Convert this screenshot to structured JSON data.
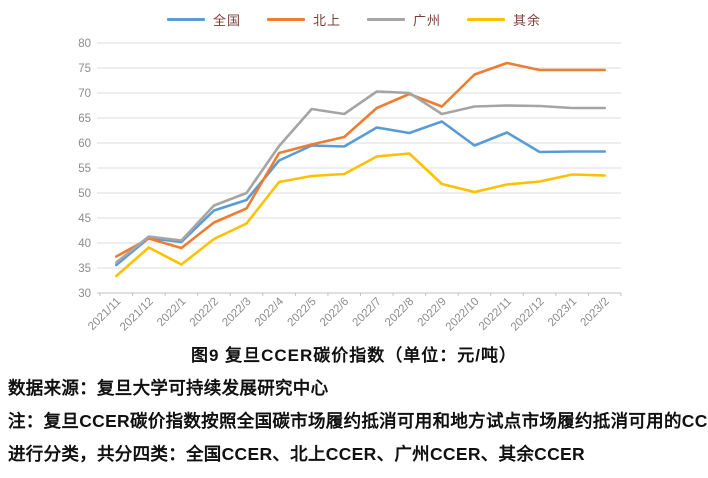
{
  "chart_data": {
    "type": "line",
    "title": "图9  复旦CCER碳价指数（单位：元/吨）",
    "categories": [
      "2021/11",
      "2021/12",
      "2022/1",
      "2022/2",
      "2022/3",
      "2022/4",
      "2022/5",
      "2022/6",
      "2022/7",
      "2022/8",
      "2022/9",
      "2022/10",
      "2022/11",
      "2022/12",
      "2023/1",
      "2023/2"
    ],
    "series": [
      {
        "name": "全国",
        "key": "national",
        "color": "#5B9BD5",
        "values": [
          35.6,
          41.0,
          40.2,
          46.5,
          48.6,
          56.5,
          59.5,
          59.3,
          63.1,
          62.0,
          64.3,
          59.5,
          62.1,
          58.2,
          58.3,
          58.3
        ]
      },
      {
        "name": "北上",
        "key": "beijing-shanghai",
        "color": "#ED7D31",
        "values": [
          37.3,
          40.9,
          39.0,
          44.1,
          46.9,
          58.0,
          59.7,
          61.2,
          67.0,
          69.8,
          67.3,
          73.7,
          76.0,
          74.6,
          74.6,
          74.6
        ]
      },
      {
        "name": "广州",
        "key": "guangzhou",
        "color": "#A5A5A5",
        "values": [
          36.1,
          41.3,
          40.5,
          47.5,
          50.0,
          59.4,
          66.8,
          65.8,
          70.3,
          70.0,
          65.8,
          67.3,
          67.5,
          67.4,
          67.0,
          67.0
        ]
      },
      {
        "name": "其余",
        "key": "others",
        "color": "#FFC000",
        "values": [
          33.4,
          39.1,
          35.7,
          40.8,
          43.9,
          52.2,
          53.4,
          53.8,
          57.3,
          57.9,
          51.8,
          50.2,
          51.7,
          52.3,
          53.7,
          53.5
        ]
      }
    ],
    "ylim": [
      30,
      80
    ],
    "ytick_step": 5,
    "yticks": [
      "30",
      "35",
      "40",
      "45",
      "50",
      "55",
      "60",
      "65",
      "70",
      "75",
      "80"
    ],
    "grid": true,
    "legend_position": "top",
    "grid_color": "#dcdcdc",
    "axis_color": "#c0c0c0",
    "tick_label_color": "#8c8c8c"
  },
  "caption": {
    "title": "图9  复旦CCER碳价指数（单位：元/吨）"
  },
  "footer": {
    "source": "数据来源：复旦大学可持续发展研究中心",
    "note_line1": "注：复旦CCER碳价指数按照全国碳市场履约抵消可用和地方试点市场履约抵消可用的CCER",
    "note_line2": "进行分类，共分四类：全国CCER、北上CCER、广州CCER、其余CCER"
  }
}
